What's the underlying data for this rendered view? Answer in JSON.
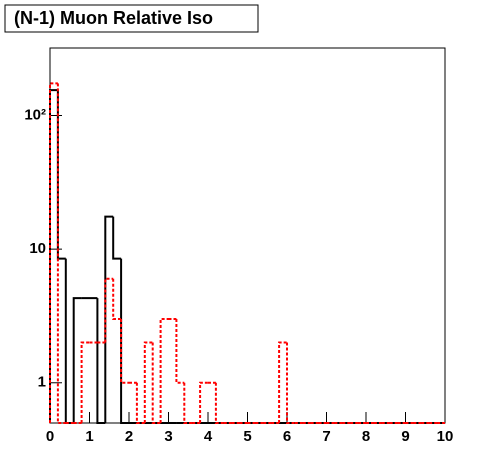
{
  "chart_data": {
    "type": "histogram",
    "title": "(N-1) Muon Relative Iso",
    "bins": [
      0,
      0.2,
      0.4,
      0.6,
      0.8,
      1,
      1.2,
      1.4,
      1.6,
      1.8,
      2,
      2.2,
      2.4,
      2.6,
      2.8,
      3,
      3.2,
      3.4,
      3.6,
      3.8,
      4,
      4.2,
      4.4,
      4.6,
      4.8,
      5,
      5.2,
      5.4,
      5.6,
      5.8,
      6,
      6.2,
      6.4,
      6.6,
      6.8,
      7,
      7.2,
      7.4,
      7.6,
      7.8,
      8,
      8.2,
      8.4,
      8.6,
      8.8,
      9,
      9.2,
      9.4,
      9.6,
      9.8,
      10
    ],
    "series": [
      {
        "color": "#000000",
        "values": [
          155,
          8.5,
          0,
          4.3,
          4.3,
          4.3,
          0,
          17.5,
          8.5,
          0,
          0,
          0,
          0,
          0,
          0,
          0,
          0,
          0,
          0,
          0,
          0,
          0,
          0,
          0,
          0,
          0,
          0,
          0,
          0,
          0,
          0,
          0,
          0,
          0,
          0,
          0,
          0,
          0,
          0,
          0,
          0,
          0,
          0,
          0,
          0,
          0,
          0,
          0,
          0,
          0
        ]
      },
      {
        "color": "#ff0000",
        "values": [
          174,
          0,
          0,
          0,
          2,
          2,
          2,
          6,
          3,
          1,
          1,
          0,
          2,
          0,
          3,
          3,
          1,
          0,
          0,
          1,
          1,
          0,
          0,
          0,
          0,
          0,
          0,
          0,
          0,
          2,
          0,
          0,
          0,
          0,
          0,
          0,
          0,
          0,
          0,
          0,
          0,
          0,
          0,
          0,
          0,
          0,
          0,
          0,
          0,
          0
        ]
      }
    ],
    "xlim": [
      0,
      10
    ],
    "xticks": [
      0,
      1,
      2,
      3,
      4,
      5,
      6,
      7,
      8,
      9,
      10
    ],
    "ylim": [
      0.5,
      320
    ],
    "log_y": true,
    "yticks": [
      1,
      10,
      {
        "value": 100,
        "label": "10²"
      }
    ]
  }
}
